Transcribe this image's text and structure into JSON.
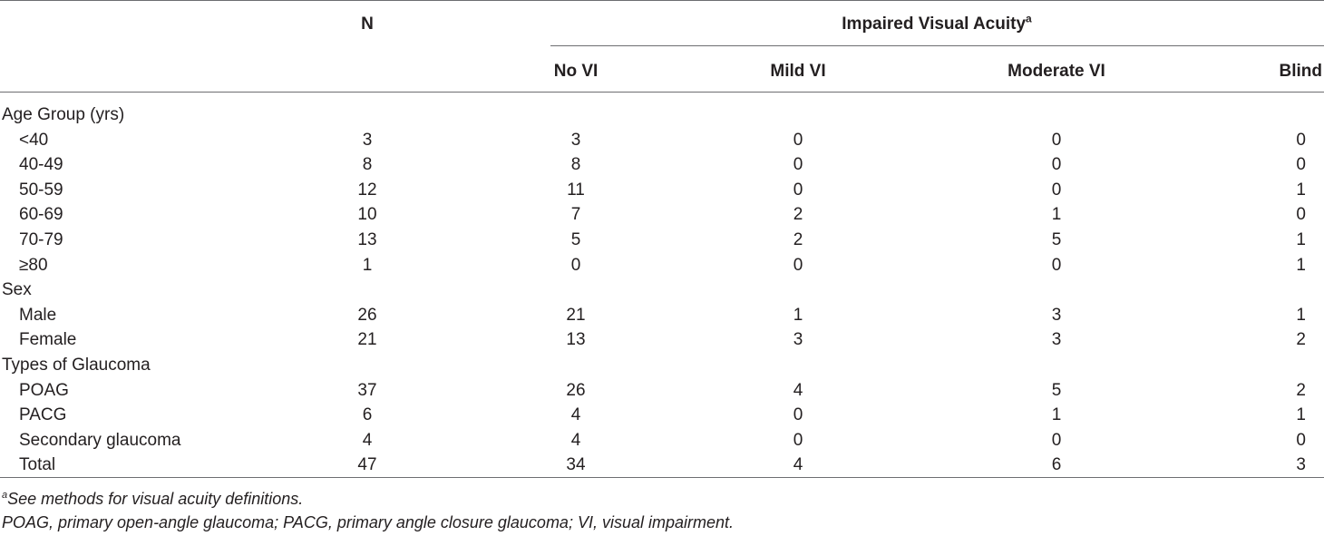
{
  "table": {
    "header": {
      "n_label": "N",
      "group_label": "Impaired Visual Acuity",
      "group_sup": "a",
      "columns": [
        "No VI",
        "Mild VI",
        "Moderate VI",
        "Blind"
      ]
    },
    "rows": [
      {
        "label": "Age Group (yrs)",
        "type": "section",
        "n": "",
        "no_vi": "",
        "mild_vi": "",
        "moderate_vi": "",
        "blind": ""
      },
      {
        "label": "<40",
        "type": "sub",
        "n": "3",
        "no_vi": "3",
        "mild_vi": "0",
        "moderate_vi": "0",
        "blind": "0"
      },
      {
        "label": "40-49",
        "type": "sub",
        "n": "8",
        "no_vi": "8",
        "mild_vi": "0",
        "moderate_vi": "0",
        "blind": "0"
      },
      {
        "label": "50-59",
        "type": "sub",
        "n": "12",
        "no_vi": "11",
        "mild_vi": "0",
        "moderate_vi": "0",
        "blind": "1"
      },
      {
        "label": "60-69",
        "type": "sub",
        "n": "10",
        "no_vi": "7",
        "mild_vi": "2",
        "moderate_vi": "1",
        "blind": "0"
      },
      {
        "label": "70-79",
        "type": "sub",
        "n": "13",
        "no_vi": "5",
        "mild_vi": "2",
        "moderate_vi": "5",
        "blind": "1"
      },
      {
        "label": "≥80",
        "type": "sub",
        "n": "1",
        "no_vi": "0",
        "mild_vi": "0",
        "moderate_vi": "0",
        "blind": "1"
      },
      {
        "label": "Sex",
        "type": "section",
        "n": "",
        "no_vi": "",
        "mild_vi": "",
        "moderate_vi": "",
        "blind": ""
      },
      {
        "label": "Male",
        "type": "sub",
        "n": "26",
        "no_vi": "21",
        "mild_vi": "1",
        "moderate_vi": "3",
        "blind": "1"
      },
      {
        "label": "Female",
        "type": "sub",
        "n": "21",
        "no_vi": "13",
        "mild_vi": "3",
        "moderate_vi": "3",
        "blind": "2"
      },
      {
        "label": "Types of Glaucoma",
        "type": "section",
        "n": "",
        "no_vi": "",
        "mild_vi": "",
        "moderate_vi": "",
        "blind": ""
      },
      {
        "label": "POAG",
        "type": "sub",
        "n": "37",
        "no_vi": "26",
        "mild_vi": "4",
        "moderate_vi": "5",
        "blind": "2"
      },
      {
        "label": "PACG",
        "type": "sub",
        "n": "6",
        "no_vi": "4",
        "mild_vi": "0",
        "moderate_vi": "1",
        "blind": "1"
      },
      {
        "label": "Secondary glaucoma",
        "type": "sub",
        "n": "4",
        "no_vi": "4",
        "mild_vi": "0",
        "moderate_vi": "0",
        "blind": "0"
      },
      {
        "label": "Total",
        "type": "sub",
        "n": "47",
        "no_vi": "34",
        "mild_vi": "4",
        "moderate_vi": "6",
        "blind": "3"
      }
    ]
  },
  "footnotes": {
    "sup": "a",
    "note_a": "See methods for visual acuity definitions.",
    "abbreviations": "POAG, primary open-angle glaucoma; PACG, primary angle closure glaucoma; VI, visual impairment."
  }
}
